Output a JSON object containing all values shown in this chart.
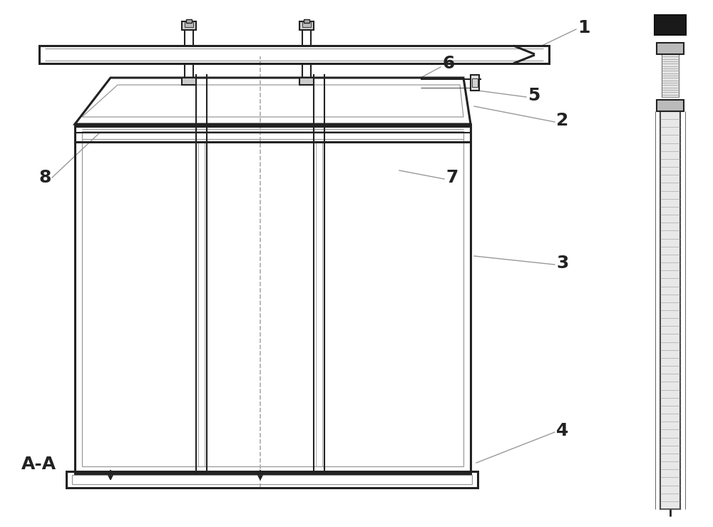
{
  "bg_color": "#ffffff",
  "line_color": "#4a4a4a",
  "dark_line": "#222222",
  "light_line": "#999999",
  "dashed_color": "#aaaaaa",
  "label_color": "#111111",
  "label_fontsize": 18,
  "figsize": [
    10.0,
    7.39
  ]
}
